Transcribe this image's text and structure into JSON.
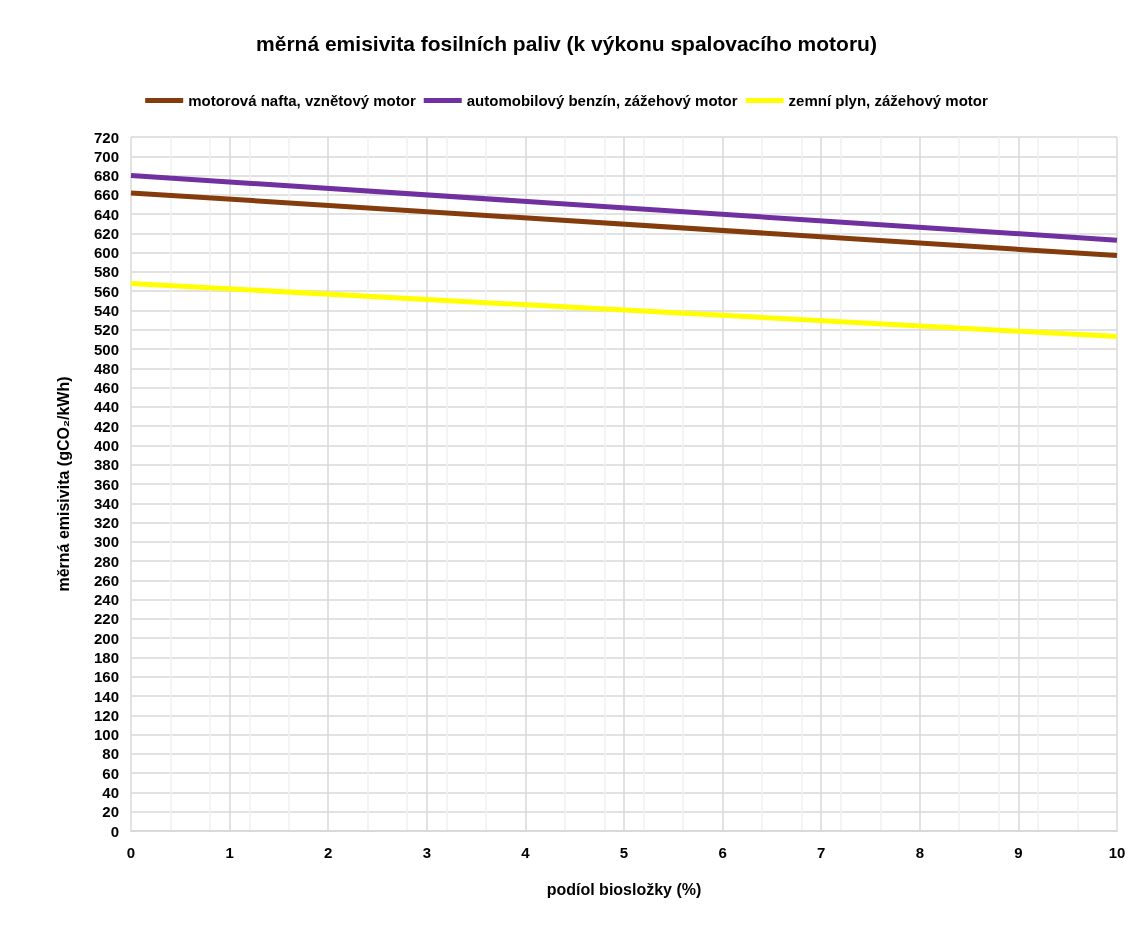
{
  "chart_data": {
    "type": "line",
    "title": "měrná emisivita fosilních paliv (k výkonu spalovacího motoru)",
    "xlabel": "podíol biosložky (%)",
    "ylabel": "měrná emisivita (gCO₂/kWh)",
    "x": [
      0,
      10
    ],
    "series": [
      {
        "name": "motorová nafta, vznětový motor",
        "color": "#843c0c",
        "values": [
          662,
          597
        ]
      },
      {
        "name": "automobilový benzín, zážehový motor",
        "color": "#7030a0",
        "values": [
          680,
          613
        ]
      },
      {
        "name": "zemní plyn, zážehový motor",
        "color": "#ffff00",
        "values": [
          568,
          513
        ]
      }
    ],
    "xlim": [
      0,
      10
    ],
    "xticks": [
      0,
      1,
      2,
      3,
      4,
      5,
      6,
      7,
      8,
      9,
      10
    ],
    "ylim": [
      0,
      720
    ],
    "yticks": [
      0,
      20,
      40,
      60,
      80,
      100,
      120,
      140,
      160,
      180,
      200,
      220,
      240,
      260,
      280,
      300,
      320,
      340,
      360,
      380,
      400,
      420,
      440,
      460,
      480,
      500,
      520,
      540,
      560,
      580,
      600,
      620,
      640,
      660,
      680,
      700,
      720
    ],
    "grid": true,
    "legend": "top",
    "marker": "none",
    "line_style": "solid"
  }
}
